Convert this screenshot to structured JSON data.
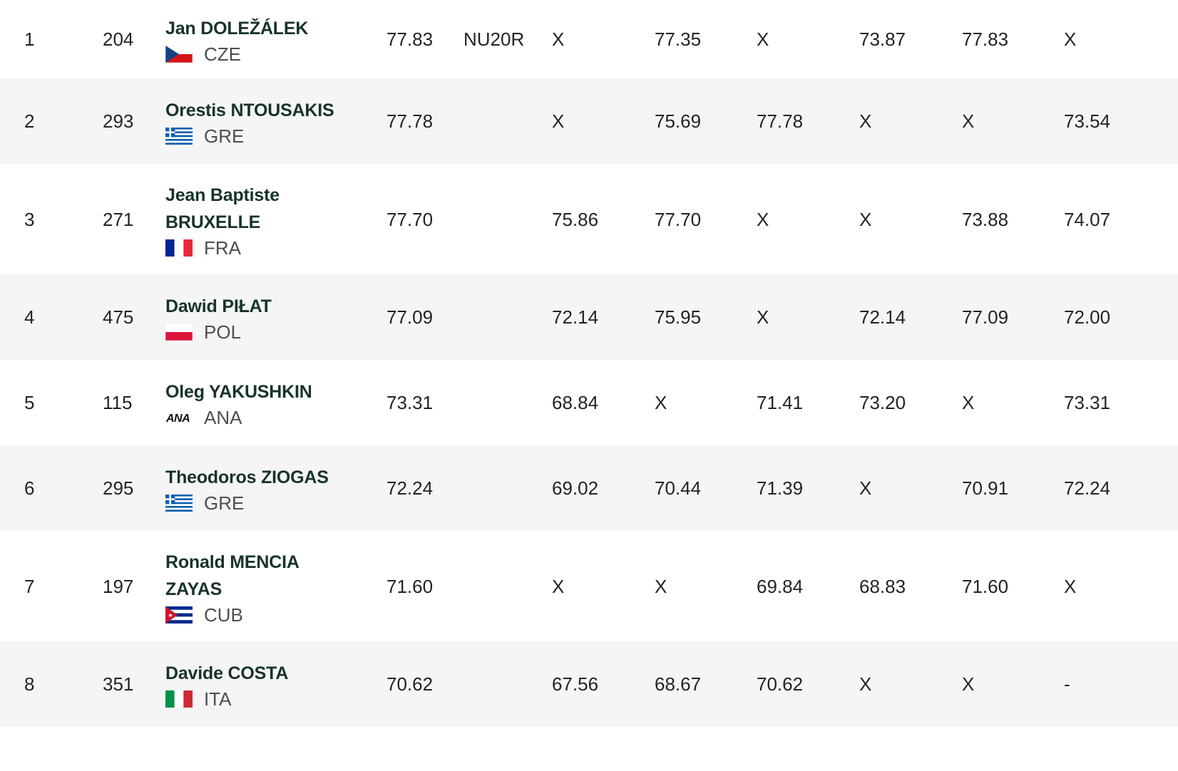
{
  "results": [
    {
      "rank": "1",
      "bib": "204",
      "name": "Jan DOLEŽÁLEK",
      "name_lines": [
        "Jan DOLEŽÁLEK"
      ],
      "country": "CZE",
      "flag_icon": "czech-flag-icon",
      "mark": "77.83",
      "note": "NU20R",
      "attempts": [
        "X",
        "77.35",
        "X",
        "73.87",
        "77.83",
        "X"
      ]
    },
    {
      "rank": "2",
      "bib": "293",
      "name": "Orestis NTOUSAKIS",
      "name_lines": [
        "Orestis NTOUSAKIS"
      ],
      "country": "GRE",
      "flag_icon": "greece-flag-icon",
      "mark": "77.78",
      "note": "",
      "attempts": [
        "X",
        "75.69",
        "77.78",
        "X",
        "X",
        "73.54"
      ]
    },
    {
      "rank": "3",
      "bib": "271",
      "name": "Jean Baptiste BRUXELLE",
      "name_lines": [
        "Jean Baptiste",
        "BRUXELLE"
      ],
      "country": "FRA",
      "flag_icon": "france-flag-icon",
      "mark": "77.70",
      "note": "",
      "attempts": [
        "75.86",
        "77.70",
        "X",
        "X",
        "73.88",
        "74.07"
      ]
    },
    {
      "rank": "4",
      "bib": "475",
      "name": "Dawid PIŁAT",
      "name_lines": [
        "Dawid PIŁAT"
      ],
      "country": "POL",
      "flag_icon": "poland-flag-icon",
      "mark": "77.09",
      "note": "",
      "attempts": [
        "72.14",
        "75.95",
        "X",
        "72.14",
        "77.09",
        "72.00"
      ]
    },
    {
      "rank": "5",
      "bib": "115",
      "name": "Oleg YAKUSHKIN",
      "name_lines": [
        "Oleg YAKUSHKIN"
      ],
      "country": "ANA",
      "flag_icon": "ana-logo-icon",
      "flag_text": "ANA",
      "mark": "73.31",
      "note": "",
      "attempts": [
        "68.84",
        "X",
        "71.41",
        "73.20",
        "X",
        "73.31"
      ]
    },
    {
      "rank": "6",
      "bib": "295",
      "name": "Theodoros ZIOGAS",
      "name_lines": [
        "Theodoros ZIOGAS"
      ],
      "country": "GRE",
      "flag_icon": "greece-flag-icon",
      "mark": "72.24",
      "note": "",
      "attempts": [
        "69.02",
        "70.44",
        "71.39",
        "X",
        "70.91",
        "72.24"
      ]
    },
    {
      "rank": "7",
      "bib": "197",
      "name": "Ronald MENCIA ZAYAS",
      "name_lines": [
        "Ronald MENCIA",
        "ZAYAS"
      ],
      "country": "CUB",
      "flag_icon": "cuba-flag-icon",
      "mark": "71.60",
      "note": "",
      "attempts": [
        "X",
        "X",
        "69.84",
        "68.83",
        "71.60",
        "X"
      ]
    },
    {
      "rank": "8",
      "bib": "351",
      "name": "Davide COSTA",
      "name_lines": [
        "Davide COSTA"
      ],
      "country": "ITA",
      "flag_icon": "italy-flag-icon",
      "mark": "70.62",
      "note": "",
      "attempts": [
        "67.56",
        "68.67",
        "70.62",
        "X",
        "X",
        "-"
      ]
    }
  ],
  "colors": {
    "row_alt_bg": "#f5f5f5",
    "name_color": "#173426",
    "text_color": "#1f2326"
  }
}
